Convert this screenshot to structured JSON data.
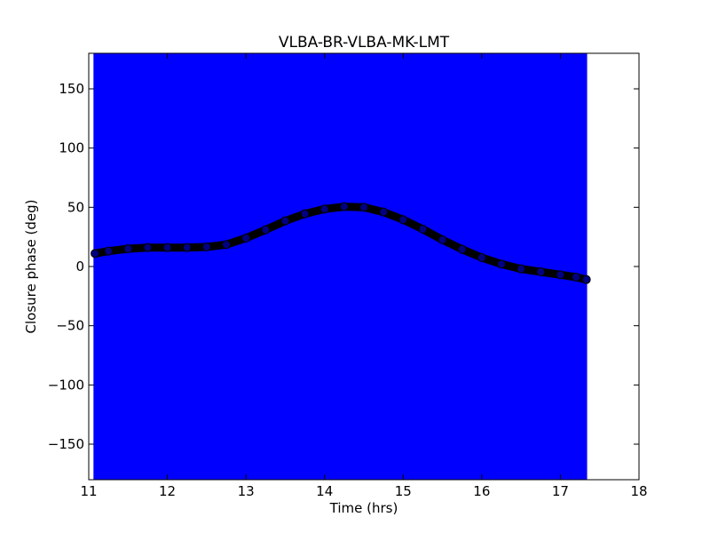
{
  "chart_data": {
    "type": "line",
    "title": "VLBA-BR-VLBA-MK-LMT",
    "xlabel": "Time (hrs)",
    "ylabel": "Closure phase (deg)",
    "xlim": [
      11,
      18
    ],
    "ylim": [
      -180,
      180
    ],
    "xticks": [
      11,
      12,
      13,
      14,
      15,
      16,
      17,
      18
    ],
    "xtick_labels": [
      "11",
      "12",
      "13",
      "14",
      "15",
      "16",
      "17",
      "18"
    ],
    "yticks": [
      150,
      100,
      50,
      0,
      -50,
      -100,
      -150
    ],
    "ytick_labels": [
      "150",
      "100",
      "50",
      "0",
      "−50",
      "−100",
      "−150"
    ],
    "grid": false,
    "shaded_band": {
      "x_range": [
        11.06,
        17.34
      ],
      "y_range": [
        -180,
        180
      ],
      "color": "#0000ff"
    },
    "series": [
      {
        "marker": "circle",
        "color": "#000000",
        "x": [
          11.08,
          11.25,
          11.5,
          11.75,
          12.0,
          12.25,
          12.5,
          12.75,
          13.0,
          13.25,
          13.5,
          13.75,
          14.0,
          14.25,
          14.5,
          14.75,
          15.0,
          15.25,
          15.5,
          15.75,
          16.0,
          16.25,
          16.5,
          16.75,
          17.0,
          17.2,
          17.33
        ],
        "y": [
          11,
          13,
          15,
          16,
          16,
          16,
          16.5,
          18.5,
          24,
          31,
          38.5,
          44.5,
          48.5,
          50.5,
          50,
          46,
          39.5,
          31.5,
          22.5,
          14.5,
          7.5,
          2,
          -2,
          -4.5,
          -7,
          -9,
          -11
        ]
      }
    ]
  }
}
